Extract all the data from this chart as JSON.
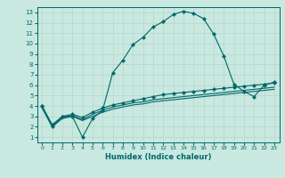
{
  "xlabel": "Humidex (Indice chaleur)",
  "bg_color": "#c8e8e0",
  "grid_color": "#b8d8d0",
  "line_color": "#006868",
  "xlim": [
    -0.5,
    23.5
  ],
  "ylim": [
    0.5,
    13.5
  ],
  "xticks": [
    0,
    1,
    2,
    3,
    4,
    5,
    6,
    7,
    8,
    9,
    10,
    11,
    12,
    13,
    14,
    15,
    16,
    17,
    18,
    19,
    20,
    21,
    22,
    23
  ],
  "yticks": [
    1,
    2,
    3,
    4,
    5,
    6,
    7,
    8,
    9,
    10,
    11,
    12,
    13
  ],
  "curve1_x": [
    0,
    1,
    2,
    3,
    4,
    5,
    6,
    7,
    8,
    9,
    10,
    11,
    12,
    13,
    14,
    15,
    16,
    17,
    18,
    19,
    20,
    21,
    22,
    23
  ],
  "curve1_y": [
    4,
    2,
    3,
    3,
    1,
    2.8,
    3.6,
    7.2,
    8.4,
    9.9,
    10.6,
    11.6,
    12.1,
    12.8,
    13.1,
    12.9,
    12.4,
    10.9,
    8.8,
    6.1,
    5.4,
    4.9,
    6.0,
    6.3
  ],
  "curve2_x": [
    0,
    1,
    2,
    3,
    4,
    5,
    6,
    7,
    8,
    9,
    10,
    11,
    12,
    13,
    14,
    15,
    16,
    17,
    18,
    19,
    20,
    21,
    22,
    23
  ],
  "curve2_y": [
    4,
    2.2,
    3.0,
    3.2,
    2.9,
    3.4,
    3.8,
    4.1,
    4.3,
    4.5,
    4.7,
    4.9,
    5.1,
    5.2,
    5.3,
    5.4,
    5.5,
    5.6,
    5.7,
    5.8,
    5.9,
    6.0,
    6.1,
    6.2
  ],
  "curve3_x": [
    0,
    1,
    2,
    3,
    4,
    5,
    6,
    7,
    8,
    9,
    10,
    11,
    12,
    13,
    14,
    15,
    16,
    17,
    18,
    19,
    20,
    21,
    22,
    23
  ],
  "curve3_y": [
    3.9,
    2.1,
    2.9,
    3.1,
    2.7,
    3.2,
    3.6,
    3.9,
    4.1,
    4.3,
    4.4,
    4.6,
    4.7,
    4.8,
    4.9,
    5.0,
    5.1,
    5.2,
    5.3,
    5.4,
    5.5,
    5.6,
    5.7,
    5.8
  ],
  "curve4_x": [
    0,
    1,
    2,
    3,
    4,
    5,
    6,
    7,
    8,
    9,
    10,
    11,
    12,
    13,
    14,
    15,
    16,
    17,
    18,
    19,
    20,
    21,
    22,
    23
  ],
  "curve4_y": [
    3.8,
    2.0,
    2.8,
    3.0,
    2.6,
    3.0,
    3.4,
    3.7,
    3.9,
    4.1,
    4.2,
    4.4,
    4.5,
    4.6,
    4.7,
    4.8,
    4.9,
    5.0,
    5.1,
    5.2,
    5.3,
    5.4,
    5.5,
    5.6
  ]
}
